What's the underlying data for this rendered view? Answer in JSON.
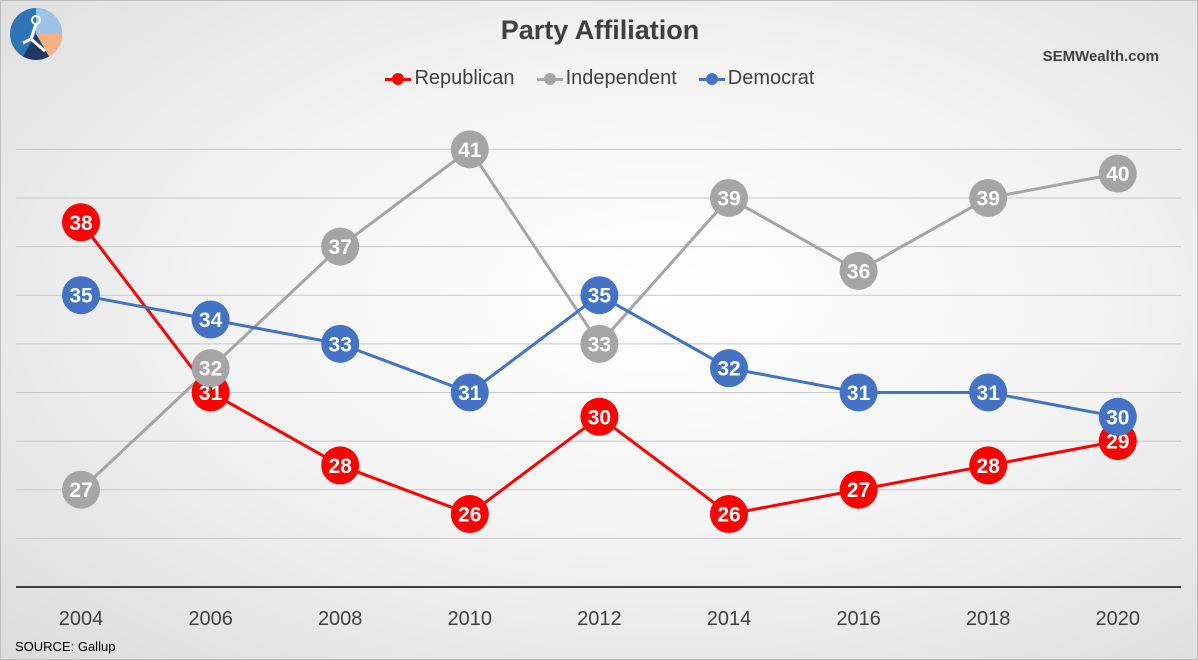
{
  "chart_data": {
    "type": "line",
    "title": "Party Affiliation",
    "categories": [
      "2004",
      "2006",
      "2008",
      "2010",
      "2012",
      "2014",
      "2016",
      "2018",
      "2020"
    ],
    "series": [
      {
        "name": "Republican",
        "color": "#ff0000",
        "values": [
          38,
          31,
          28,
          26,
          30,
          26,
          27,
          28,
          29
        ]
      },
      {
        "name": "Independent",
        "color": "#a5a5a5",
        "values": [
          27,
          32,
          37,
          41,
          33,
          39,
          36,
          39,
          40
        ]
      },
      {
        "name": "Democrat",
        "color": "#4472c4",
        "values": [
          35,
          34,
          33,
          31,
          35,
          32,
          31,
          31,
          30
        ]
      }
    ],
    "ylim": [
      23,
      42
    ],
    "xlabel": "",
    "ylabel": "",
    "grid": true,
    "legend": "top-center"
  },
  "brand": "SEMWealth.com",
  "source": "SOURCE: Gallup"
}
